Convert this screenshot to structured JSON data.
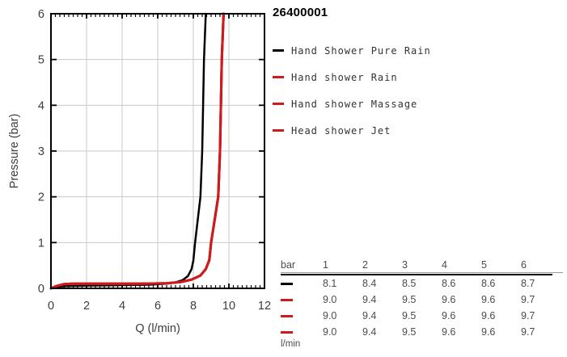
{
  "title": "26400001",
  "legend": {
    "items": [
      {
        "label": "Hand Shower Pure Rain",
        "color": "#000000"
      },
      {
        "label": "Hand shower Rain",
        "color": "#cc1a1d"
      },
      {
        "label": "Hand shower Massage",
        "color": "#cc1a1d"
      },
      {
        "label": "Head shower Jet",
        "color": "#cc1a1d"
      }
    ]
  },
  "chart_data": {
    "type": "line",
    "title": "26400001",
    "xlabel": "Q (l/min)",
    "ylabel": "Pressure (bar)",
    "xlim": [
      0,
      12
    ],
    "ylim": [
      0,
      6
    ],
    "xticks": [
      0,
      2,
      4,
      6,
      8,
      10,
      12
    ],
    "yticks": [
      0,
      1,
      2,
      3,
      4,
      5,
      6
    ],
    "minor_tick_step_x": 0.25,
    "grid": true,
    "legend_position": "right",
    "colors": {
      "axis": "#000000",
      "grid": "#c9c9c9",
      "tick_label": "#3d3d3d"
    },
    "series": [
      {
        "name": "Hand Shower Pure Rain",
        "color": "#000000",
        "width": 2.5,
        "points": [
          [
            0,
            0
          ],
          [
            0.3,
            0.03
          ],
          [
            0.8,
            0.05
          ],
          [
            2,
            0.06
          ],
          [
            4,
            0.07
          ],
          [
            5.5,
            0.08
          ],
          [
            6.5,
            0.1
          ],
          [
            7.0,
            0.13
          ],
          [
            7.4,
            0.18
          ],
          [
            7.7,
            0.27
          ],
          [
            7.9,
            0.42
          ],
          [
            8.0,
            0.6
          ],
          [
            8.1,
            1.0
          ],
          [
            8.25,
            1.5
          ],
          [
            8.4,
            2.0
          ],
          [
            8.5,
            3.0
          ],
          [
            8.55,
            4.0
          ],
          [
            8.6,
            5.0
          ],
          [
            8.7,
            6.0
          ]
        ]
      },
      {
        "name": "Hand shower Rain",
        "color": "#cc1a1d",
        "width": 3,
        "points": [
          [
            0,
            0
          ],
          [
            0.3,
            0.05
          ],
          [
            0.7,
            0.09
          ],
          [
            1.2,
            0.1
          ],
          [
            3,
            0.1
          ],
          [
            5,
            0.1
          ],
          [
            6.5,
            0.11
          ],
          [
            7.3,
            0.14
          ],
          [
            7.9,
            0.19
          ],
          [
            8.4,
            0.28
          ],
          [
            8.7,
            0.42
          ],
          [
            8.9,
            0.62
          ],
          [
            9.0,
            1.0
          ],
          [
            9.2,
            1.5
          ],
          [
            9.4,
            2.0
          ],
          [
            9.5,
            3.0
          ],
          [
            9.55,
            4.0
          ],
          [
            9.6,
            5.0
          ],
          [
            9.7,
            6.0
          ]
        ]
      },
      {
        "name": "Hand shower Massage",
        "color": "#cc1a1d",
        "width": 3,
        "points": [
          [
            0,
            0
          ],
          [
            0.3,
            0.05
          ],
          [
            0.7,
            0.09
          ],
          [
            1.2,
            0.1
          ],
          [
            3,
            0.1
          ],
          [
            5,
            0.1
          ],
          [
            6.5,
            0.11
          ],
          [
            7.3,
            0.14
          ],
          [
            7.9,
            0.19
          ],
          [
            8.4,
            0.28
          ],
          [
            8.7,
            0.42
          ],
          [
            8.9,
            0.62
          ],
          [
            9.0,
            1.0
          ],
          [
            9.2,
            1.5
          ],
          [
            9.4,
            2.0
          ],
          [
            9.5,
            3.0
          ],
          [
            9.55,
            4.0
          ],
          [
            9.6,
            5.0
          ],
          [
            9.7,
            6.0
          ]
        ]
      },
      {
        "name": "Head shower Jet",
        "color": "#cc1a1d",
        "width": 3,
        "points": [
          [
            0,
            0
          ],
          [
            0.3,
            0.05
          ],
          [
            0.7,
            0.09
          ],
          [
            1.2,
            0.1
          ],
          [
            3,
            0.1
          ],
          [
            5,
            0.1
          ],
          [
            6.5,
            0.11
          ],
          [
            7.3,
            0.14
          ],
          [
            7.9,
            0.19
          ],
          [
            8.4,
            0.28
          ],
          [
            8.7,
            0.42
          ],
          [
            8.9,
            0.62
          ],
          [
            9.0,
            1.0
          ],
          [
            9.2,
            1.5
          ],
          [
            9.4,
            2.0
          ],
          [
            9.5,
            3.0
          ],
          [
            9.55,
            4.0
          ],
          [
            9.6,
            5.0
          ],
          [
            9.7,
            6.0
          ]
        ]
      }
    ]
  },
  "table": {
    "unit_header": "bar",
    "pressure_columns": [
      "1",
      "2",
      "3",
      "4",
      "5",
      "6"
    ],
    "unit_footer": "l/min",
    "rows": [
      {
        "series": "Hand Shower Pure Rain",
        "color": "#000000",
        "values": [
          "8.1",
          "8.4",
          "8.5",
          "8.6",
          "8.6",
          "8.7"
        ]
      },
      {
        "series": "Hand shower Rain",
        "color": "#cc1a1d",
        "values": [
          "9.0",
          "9.4",
          "9.5",
          "9.6",
          "9.6",
          "9.7"
        ]
      },
      {
        "series": "Hand shower Massage",
        "color": "#cc1a1d",
        "values": [
          "9.0",
          "9.4",
          "9.5",
          "9.6",
          "9.6",
          "9.7"
        ]
      },
      {
        "series": "Head shower Jet",
        "color": "#cc1a1d",
        "values": [
          "9.0",
          "9.4",
          "9.5",
          "9.6",
          "9.6",
          "9.7"
        ]
      }
    ]
  }
}
